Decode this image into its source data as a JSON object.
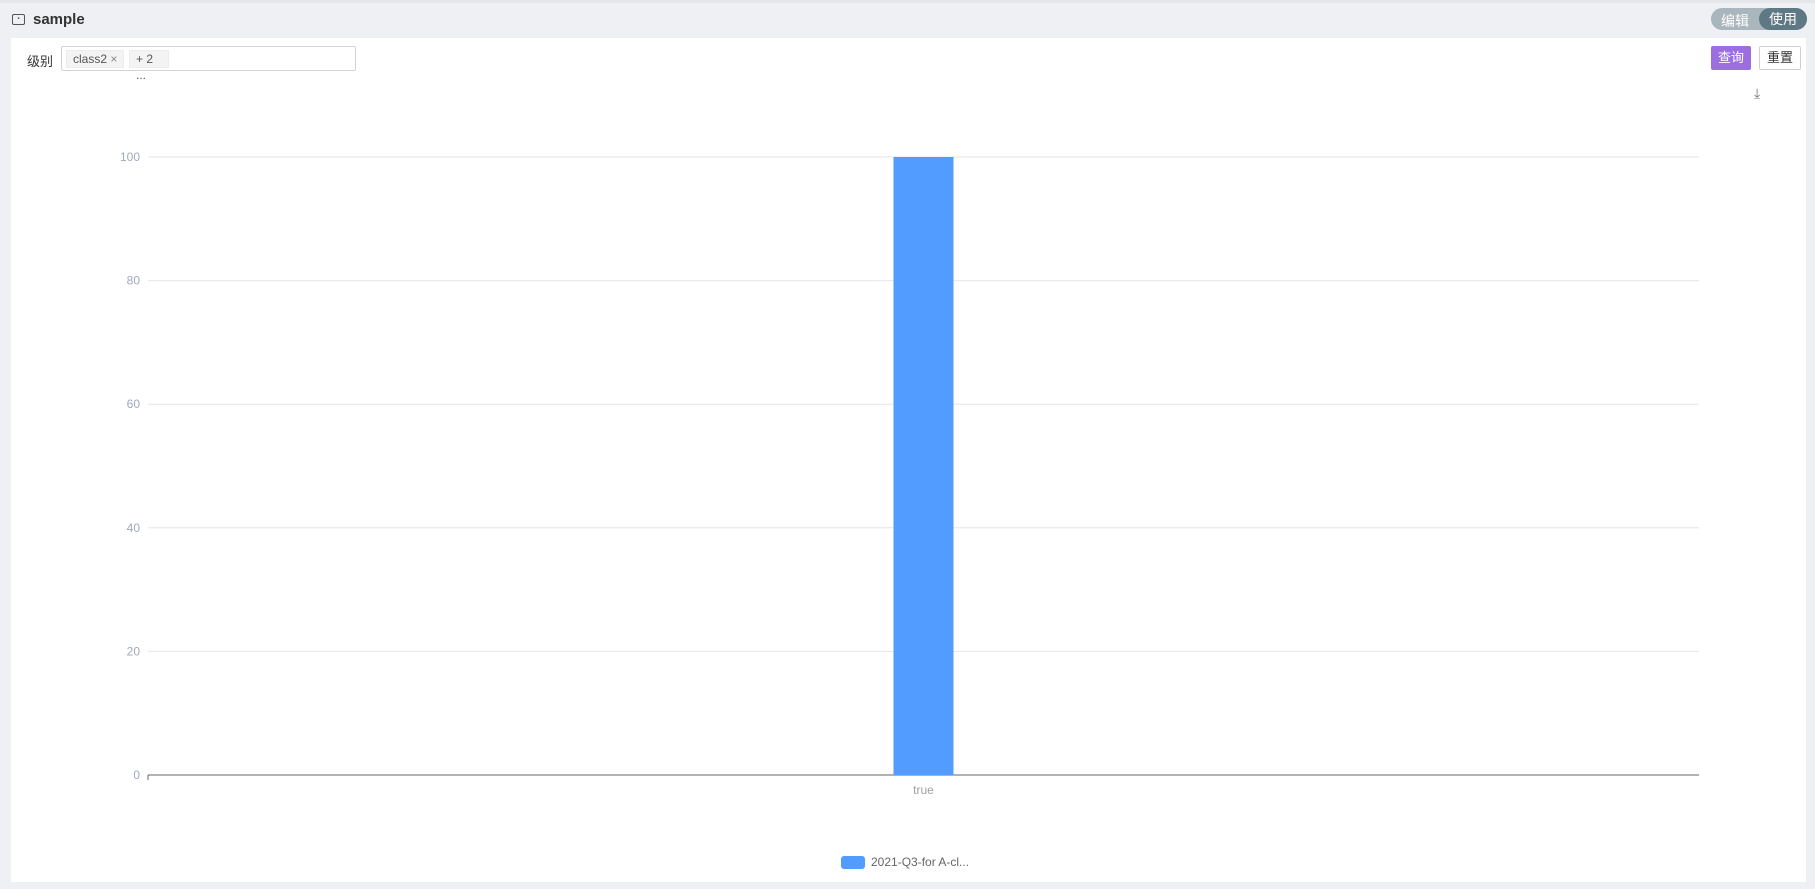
{
  "header": {
    "title": "sample",
    "toggle": {
      "edit": "编辑",
      "use": "使用",
      "active": "使用"
    }
  },
  "filter": {
    "label": "级别",
    "tags": [
      "class2"
    ],
    "more": "+ 2 ..."
  },
  "toolbar": {
    "query": "查询",
    "reset": "重置",
    "download_icon": "download-icon"
  },
  "chart_data": {
    "type": "bar",
    "categories": [
      "true"
    ],
    "series": [
      {
        "name": "2021-Q3-for A-cl...",
        "values": [
          100
        ],
        "color": "#529cff"
      }
    ],
    "yticks": [
      0,
      20,
      40,
      60,
      80,
      100
    ],
    "ylim": [
      0,
      100
    ],
    "grid": true,
    "legend": "bottom"
  }
}
